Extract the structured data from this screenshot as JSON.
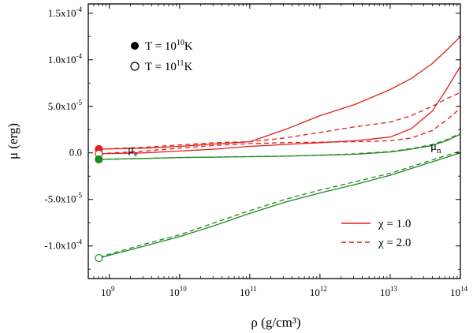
{
  "chart_data": {
    "type": "line",
    "xscale": "log",
    "xlim_log10": [
      8.7,
      14
    ],
    "ylim": [
      -0.000135,
      0.00016
    ],
    "xlabel": "ρ (g/cm³)",
    "ylabel": "μ (erg)",
    "x_tick_labels": [
      {
        "base": "10",
        "exp": "9"
      },
      {
        "base": "10",
        "exp": "10"
      },
      {
        "base": "10",
        "exp": "11"
      },
      {
        "base": "10",
        "exp": "12"
      },
      {
        "base": "10",
        "exp": "13"
      },
      {
        "base": "10",
        "exp": "14"
      }
    ],
    "y_tick_labels": [
      {
        "value": 0.00015,
        "mant": "1.5x10",
        "exp": "-4"
      },
      {
        "value": 0.0001,
        "mant": "1.0x10",
        "exp": "-4"
      },
      {
        "value": 5e-05,
        "mant": "5.0x10",
        "exp": "-5"
      },
      {
        "value": 0,
        "mant": "0.0",
        "exp": ""
      },
      {
        "value": -5e-05,
        "mant": "-5.0x10",
        "exp": "-5"
      },
      {
        "value": -0.0001,
        "mant": "-1.0x10",
        "exp": "-4"
      }
    ],
    "legend_T": [
      {
        "marker": "filled",
        "prefix": "T = 10",
        "exp": "10",
        "unit": "K"
      },
      {
        "marker": "open",
        "prefix": "T = 10",
        "exp": "11",
        "unit": "K"
      }
    ],
    "legend_chi": [
      {
        "style": "solid",
        "label": "χ = 1.0"
      },
      {
        "style": "dashed",
        "label": "χ = 2.0"
      }
    ],
    "annotations": [
      {
        "main": "μ",
        "sub": "e",
        "x_log10": 9.15,
        "y": 4e-06
      },
      {
        "main": "μ",
        "sub": "n",
        "x_log10": 13.5,
        "y": 7e-06
      }
    ],
    "colors": {
      "electron": "#e0201b",
      "neutron": "#1f8a1f"
    },
    "series": [
      {
        "name": "mu_e, T=1e10 K, chi=1.0",
        "color": "#e0201b",
        "style": "solid",
        "x_log10": [
          8.85,
          9.5,
          10,
          10.5,
          11,
          11.5,
          12,
          12.5,
          13,
          13.3,
          13.6,
          13.8,
          14
        ],
        "y": [
          4e-06,
          5e-06,
          7e-06,
          9.5e-06,
          1.2e-05,
          2.5e-05,
          4e-05,
          5.2e-05,
          6.8e-05,
          8e-05,
          9.6e-05,
          0.00011,
          0.000125
        ]
      },
      {
        "name": "mu_e, T=1e11 K, chi=1.0",
        "color": "#e0201b",
        "style": "solid",
        "x_log10": [
          8.85,
          9.5,
          10,
          10.5,
          11,
          11.5,
          12,
          12.5,
          13,
          13.3,
          13.6,
          13.8,
          14
        ],
        "y": [
          -1e-06,
          0.0,
          2e-06,
          4e-06,
          7e-06,
          9e-06,
          1.1e-05,
          1.3e-05,
          1.7e-05,
          2.6e-05,
          4.5e-05,
          6.8e-05,
          9.3e-05
        ]
      },
      {
        "name": "mu_e, T=1e10 K, chi=2.0",
        "color": "#e0201b",
        "style": "dashed",
        "x_log10": [
          8.85,
          9.5,
          10,
          10.5,
          11,
          11.5,
          12,
          12.5,
          13,
          13.3,
          13.6,
          13.8,
          14
        ],
        "y": [
          4e-06,
          6e-06,
          8.5e-06,
          1.1e-05,
          1.2e-05,
          1.6e-05,
          2.2e-05,
          2.8e-05,
          3.3e-05,
          4e-05,
          5e-05,
          5.8e-05,
          6.5e-05
        ]
      },
      {
        "name": "mu_e, T=1e11 K, chi=2.0",
        "color": "#e0201b",
        "style": "dashed",
        "x_log10": [
          8.85,
          9.5,
          10,
          10.5,
          11,
          11.5,
          12,
          12.5,
          13,
          13.3,
          13.6,
          13.8,
          14
        ],
        "y": [
          -1e-06,
          2e-06,
          5e-06,
          8e-06,
          1e-05,
          1.1e-05,
          1.15e-05,
          1.2e-05,
          1.3e-05,
          1.6e-05,
          2.4e-05,
          3.5e-05,
          4.8e-05
        ]
      },
      {
        "name": "mu_n, T=1e10 K, chi=1.0",
        "color": "#1f8a1f",
        "style": "solid",
        "x_log10": [
          8.85,
          9.5,
          10,
          10.5,
          11,
          11.5,
          12,
          12.5,
          13,
          13.3,
          13.6,
          13.8,
          14
        ],
        "y": [
          -7e-06,
          -6e-06,
          -5e-06,
          -4.5e-06,
          -4e-06,
          -3.5e-06,
          -2.5e-06,
          -1.5e-06,
          1e-06,
          4e-06,
          8e-06,
          1.3e-05,
          2e-05
        ]
      },
      {
        "name": "mu_n, T=1e10 K, chi=2.0",
        "color": "#1f8a1f",
        "style": "dashed",
        "x_log10": [
          8.85,
          9.5,
          10,
          10.5,
          11,
          11.5,
          12,
          12.5,
          13,
          13.3,
          13.6,
          13.8,
          14
        ],
        "y": [
          -7e-06,
          -6e-06,
          -5e-06,
          -4.5e-06,
          -4e-06,
          -3.5e-06,
          -2.5e-06,
          -1e-06,
          1.5e-06,
          4.5e-06,
          9e-06,
          1.4e-05,
          2.1e-05
        ]
      },
      {
        "name": "mu_n, T=1e11 K, chi=1.0",
        "color": "#1f8a1f",
        "style": "solid",
        "x_log10": [
          8.85,
          9.5,
          10,
          10.5,
          11,
          11.5,
          12,
          12.5,
          13,
          13.5,
          14
        ],
        "y": [
          -0.000113,
          -0.0001,
          -9e-05,
          -7.8e-05,
          -6.5e-05,
          -5.3e-05,
          -4.3e-05,
          -3.4e-05,
          -2.4e-05,
          -1.2e-05,
          0.0
        ]
      },
      {
        "name": "mu_n, T=1e11 K, chi=2.0",
        "color": "#1f8a1f",
        "style": "dashed",
        "x_log10": [
          8.85,
          9.5,
          10,
          10.5,
          11,
          11.5,
          12,
          12.5,
          13,
          13.5,
          14
        ],
        "y": [
          -0.000112,
          -9.8e-05,
          -8.8e-05,
          -7.5e-05,
          -6.2e-05,
          -5e-05,
          -4e-05,
          -3.1e-05,
          -2.2e-05,
          -1e-05,
          2e-06
        ]
      }
    ],
    "markers": [
      {
        "x_log10": 8.85,
        "y": 4e-06,
        "fill": "filled",
        "color": "#e0201b"
      },
      {
        "x_log10": 8.85,
        "y": -1e-06,
        "fill": "open",
        "color": "#e0201b"
      },
      {
        "x_log10": 8.85,
        "y": -7e-06,
        "fill": "filled",
        "color": "#1f8a1f"
      },
      {
        "x_log10": 8.85,
        "y": -0.000113,
        "fill": "open",
        "color": "#1f8a1f"
      }
    ]
  }
}
